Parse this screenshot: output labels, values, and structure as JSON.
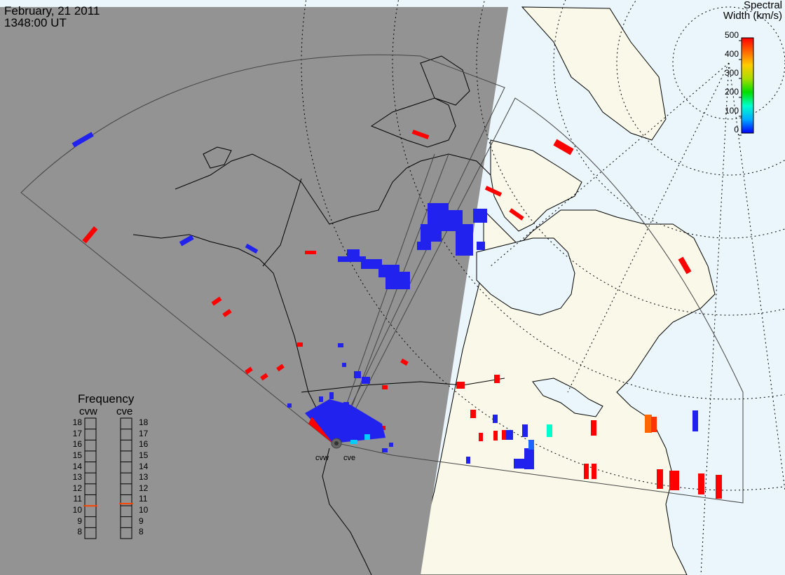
{
  "header": {
    "date": "February, 21 2011",
    "time": "1348:00 UT"
  },
  "colorbar": {
    "title_line1": "Spectral",
    "title_line2": "Width (km/s)",
    "ticks": [
      "500",
      "400",
      "300",
      "200",
      "100",
      "0"
    ],
    "colors": [
      "#0000ff",
      "#00aaff",
      "#00ffcc",
      "#00dd00",
      "#aadd00",
      "#ffcc00",
      "#ff6600",
      "#ff0000"
    ]
  },
  "frequency": {
    "title": "Frequency",
    "radars": [
      "cvw",
      "cve"
    ],
    "ticks": [
      "18",
      "17",
      "16",
      "15",
      "14",
      "13",
      "12",
      "11",
      "10",
      "9",
      "8"
    ],
    "cvw_value": 10.5,
    "cve_value": 10.7,
    "marker_color": "#ff4400"
  },
  "sites": [
    "cvw",
    "cve"
  ],
  "colors": {
    "night": "#939393",
    "land": "#f9f8e9",
    "ocean": "#eaf6fc",
    "high_width": "#ff0000",
    "low_width": "#2222ff"
  }
}
